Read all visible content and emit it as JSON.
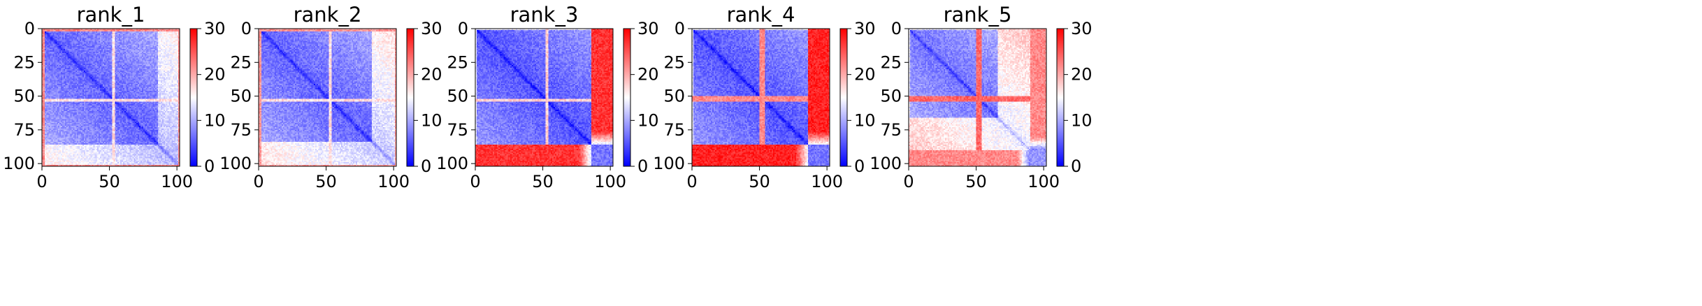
{
  "chart_data": [
    {
      "type": "heatmap",
      "title": "rank_1",
      "x_ticks": [
        "0",
        "50",
        "100"
      ],
      "y_ticks": [
        "0",
        "25",
        "50",
        "75",
        "100"
      ],
      "x_range": [
        0,
        102
      ],
      "y_range": [
        0,
        102
      ],
      "colorbar": {
        "range": [
          0,
          30
        ],
        "ticks": [
          "0",
          "10",
          "20",
          "30"
        ],
        "colormap": "bwr"
      },
      "pattern": {
        "base": 6,
        "diag_min": 2,
        "gap_rows": [
          52,
          53
        ],
        "gap_value": 17,
        "edge_rows": [
          0,
          1,
          101
        ],
        "edge_value": 22,
        "high_region": null,
        "tail_start": 86,
        "tail_value": 10
      }
    },
    {
      "type": "heatmap",
      "title": "rank_2",
      "x_ticks": [
        "0",
        "50",
        "100"
      ],
      "y_ticks": [
        "0",
        "25",
        "50",
        "75",
        "100"
      ],
      "x_range": [
        0,
        102
      ],
      "y_range": [
        0,
        102
      ],
      "colorbar": {
        "range": [
          0,
          30
        ],
        "ticks": [
          "0",
          "10",
          "20",
          "30"
        ],
        "colormap": "bwr"
      },
      "pattern": {
        "base": 6,
        "diag_min": 2,
        "gap_rows": [
          52,
          53
        ],
        "gap_value": 17,
        "edge_rows": [
          0,
          1,
          101
        ],
        "edge_value": 21,
        "high_region": null,
        "tail_start": 84,
        "tail_value": 12
      }
    },
    {
      "type": "heatmap",
      "title": "rank_3",
      "x_ticks": [
        "0",
        "50",
        "100"
      ],
      "y_ticks": [
        "0",
        "25",
        "50",
        "75",
        "100"
      ],
      "x_range": [
        0,
        102
      ],
      "y_range": [
        0,
        102
      ],
      "colorbar": {
        "range": [
          0,
          30
        ],
        "ticks": [
          "0",
          "10",
          "20",
          "30"
        ],
        "colormap": "bwr"
      },
      "pattern": {
        "base": 5,
        "diag_min": 1,
        "gap_rows": [
          52,
          53
        ],
        "gap_value": 18,
        "edge_rows": [
          0
        ],
        "edge_value": 14,
        "high_region": {
          "start": 86,
          "end": 102,
          "value": 27,
          "taper": 0.45
        },
        "tail_start": null,
        "tail_value": 0
      }
    },
    {
      "type": "heatmap",
      "title": "rank_4",
      "x_ticks": [
        "0",
        "50",
        "100"
      ],
      "y_ticks": [
        "0",
        "25",
        "50",
        "75",
        "100"
      ],
      "x_range": [
        0,
        102
      ],
      "y_range": [
        0,
        102
      ],
      "colorbar": {
        "range": [
          0,
          30
        ],
        "ticks": [
          "0",
          "10",
          "20",
          "30"
        ],
        "colormap": "bwr"
      },
      "pattern": {
        "base": 5,
        "diag_min": 1,
        "gap_rows": [
          50,
          51,
          52,
          53
        ],
        "gap_value": 22,
        "edge_rows": [
          0
        ],
        "edge_value": 14,
        "high_region": {
          "start": 86,
          "end": 102,
          "value": 28,
          "taper": 0.5
        },
        "tail_start": null,
        "tail_value": 0
      }
    },
    {
      "type": "heatmap",
      "title": "rank_5",
      "x_ticks": [
        "0",
        "50",
        "100"
      ],
      "y_ticks": [
        "0",
        "25",
        "50",
        "75",
        "100"
      ],
      "x_range": [
        0,
        102
      ],
      "y_range": [
        0,
        102
      ],
      "colorbar": {
        "range": [
          0,
          30
        ],
        "ticks": [
          "0",
          "10",
          "20",
          "30"
        ],
        "colormap": "bwr"
      },
      "pattern": {
        "base": 7,
        "diag_min": 2,
        "gap_rows": [
          50,
          51,
          52,
          53
        ],
        "gap_value": 24,
        "edge_rows": [
          0
        ],
        "edge_value": 14,
        "high_region": {
          "start": 90,
          "end": 102,
          "value": 22,
          "taper": 0.3
        },
        "tail_start": 66,
        "tail_value": 14
      }
    }
  ]
}
